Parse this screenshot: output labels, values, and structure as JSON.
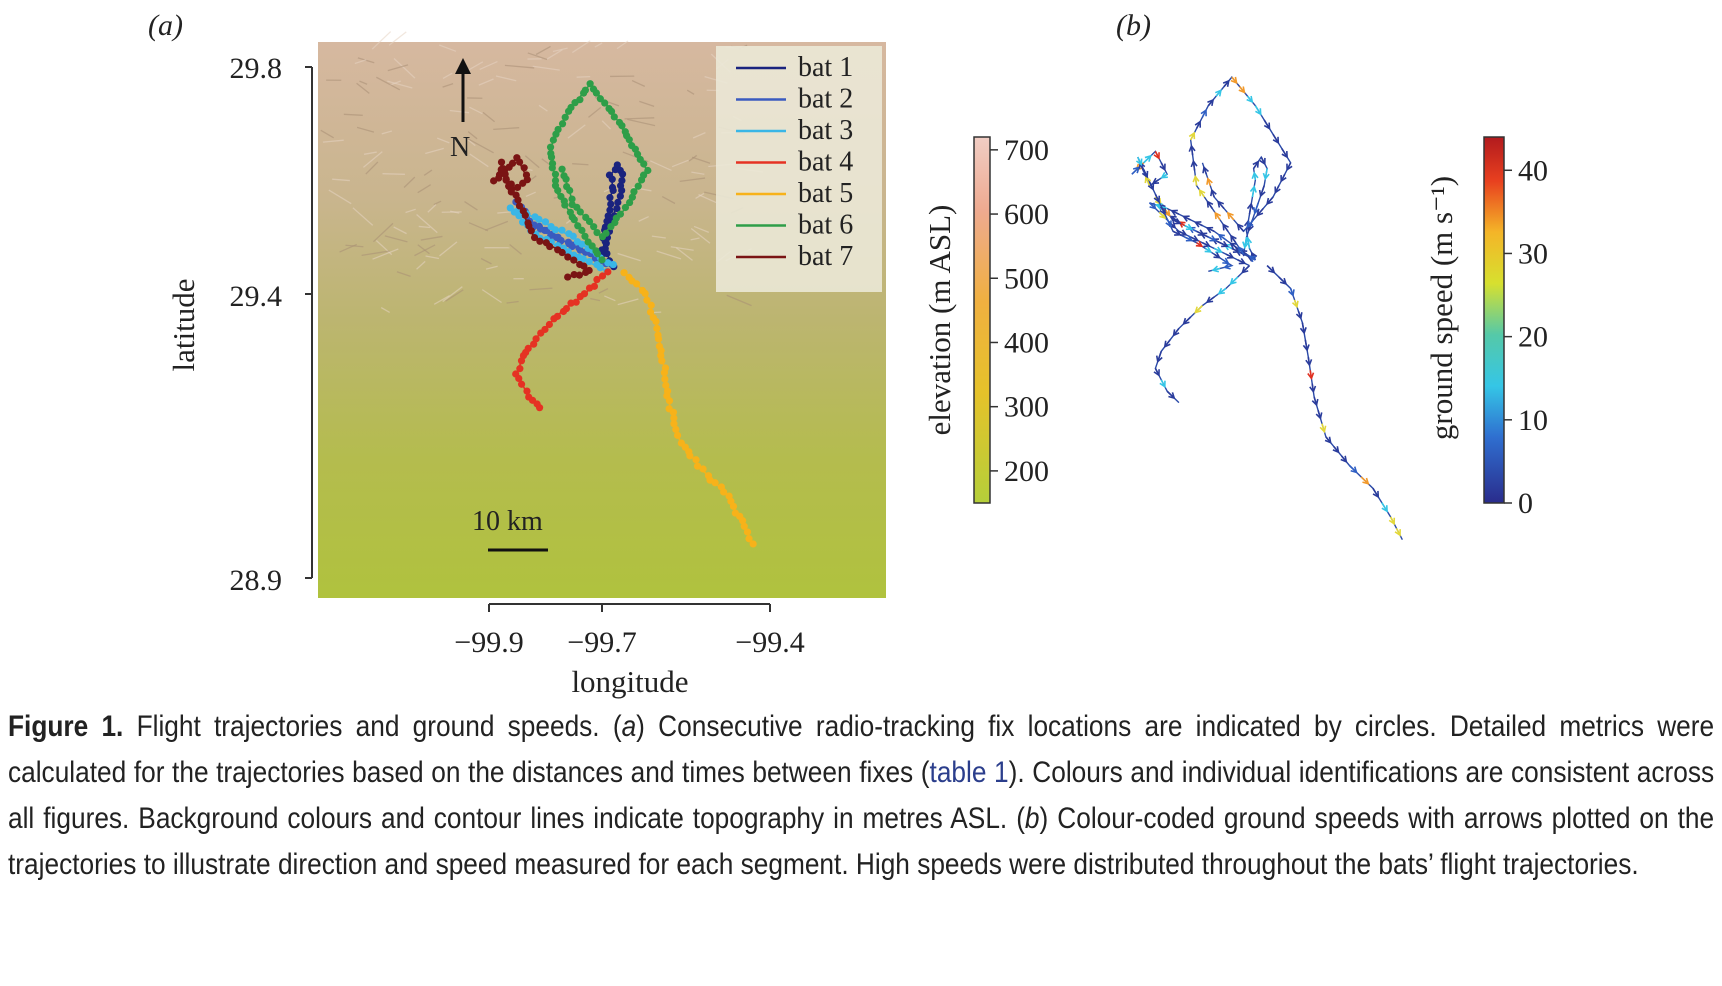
{
  "panel_a": {
    "label": "(a)",
    "xlabel": "longitude",
    "ylabel": "latitude",
    "x_ticks": [
      "−99.9",
      "−99.7",
      "−99.4"
    ],
    "y_ticks": [
      "29.8",
      "29.4",
      "28.9"
    ],
    "north_label": "N",
    "scale_label": "10 km"
  },
  "elevation_colorbar": {
    "label": "elevation (m ASL)",
    "ticks": [
      "700",
      "600",
      "500",
      "400",
      "300",
      "200"
    ]
  },
  "panel_b": {
    "label": "(b)"
  },
  "speed_colorbar": {
    "label": "ground speed (m s⁻¹)",
    "ticks": [
      "40",
      "30",
      "20",
      "10",
      "0"
    ]
  },
  "chart_data": [
    {
      "type": "scatter",
      "panel": "a",
      "xlabel": "longitude",
      "ylabel": "latitude",
      "xlim": [
        -100.2,
        -99.2
      ],
      "ylim": [
        28.9,
        29.84
      ],
      "x_ticks": [
        -99.9,
        -99.7,
        -99.4
      ],
      "y_ticks": [
        29.8,
        29.4,
        28.9
      ],
      "legend_position": "top-right",
      "series": [
        {
          "name": "bat 1",
          "color": "#1a237e",
          "points": [
            [
              -99.68,
              29.45
            ],
            [
              -99.69,
              29.47
            ],
            [
              -99.695,
              29.5
            ],
            [
              -99.69,
              29.53
            ],
            [
              -99.685,
              29.56
            ],
            [
              -99.68,
              29.59
            ],
            [
              -99.683,
              29.61
            ],
            [
              -99.67,
              29.63
            ],
            [
              -99.66,
              29.61
            ],
            [
              -99.665,
              29.58
            ],
            [
              -99.675,
              29.55
            ],
            [
              -99.685,
              29.52
            ],
            [
              -99.695,
              29.49
            ],
            [
              -99.7,
              29.46
            ]
          ]
        },
        {
          "name": "bat 2",
          "color": "#3a5bbf",
          "points": [
            [
              -99.68,
              29.45
            ],
            [
              -99.72,
              29.47
            ],
            [
              -99.76,
              29.49
            ],
            [
              -99.8,
              29.51
            ],
            [
              -99.83,
              29.53
            ],
            [
              -99.85,
              29.56
            ],
            [
              -99.82,
              29.52
            ],
            [
              -99.78,
              29.5
            ],
            [
              -99.74,
              29.48
            ],
            [
              -99.7,
              29.46
            ]
          ]
        },
        {
          "name": "bat 3",
          "color": "#3ab6e6",
          "points": [
            [
              -99.68,
              29.45
            ],
            [
              -99.71,
              29.47
            ],
            [
              -99.75,
              29.5
            ],
            [
              -99.79,
              29.52
            ],
            [
              -99.83,
              29.54
            ],
            [
              -99.86,
              29.55
            ],
            [
              -99.81,
              29.5
            ],
            [
              -99.77,
              29.48
            ],
            [
              -99.73,
              29.46
            ],
            [
              -99.69,
              29.44
            ]
          ]
        },
        {
          "name": "bat 4",
          "color": "#e53223",
          "points": [
            [
              -99.69,
              29.44
            ],
            [
              -99.73,
              29.4
            ],
            [
              -99.77,
              29.37
            ],
            [
              -99.81,
              29.33
            ],
            [
              -99.84,
              29.29
            ],
            [
              -99.85,
              29.26
            ],
            [
              -99.83,
              29.22
            ],
            [
              -99.81,
              29.2
            ]
          ]
        },
        {
          "name": "bat 5",
          "color": "#f7b21a",
          "points": [
            [
              -99.66,
              29.44
            ],
            [
              -99.62,
              29.4
            ],
            [
              -99.6,
              29.34
            ],
            [
              -99.59,
              29.28
            ],
            [
              -99.58,
              29.21
            ],
            [
              -99.56,
              29.14
            ],
            [
              -99.52,
              29.09
            ],
            [
              -99.48,
              29.05
            ],
            [
              -99.45,
              29.0
            ],
            [
              -99.43,
              28.96
            ]
          ]
        },
        {
          "name": "bat 6",
          "color": "#2e9e48",
          "points": [
            [
              -99.7,
              29.46
            ],
            [
              -99.74,
              29.52
            ],
            [
              -99.78,
              29.58
            ],
            [
              -99.79,
              29.66
            ],
            [
              -99.76,
              29.72
            ],
            [
              -99.72,
              29.77
            ],
            [
              -99.68,
              29.72
            ],
            [
              -99.65,
              29.67
            ],
            [
              -99.62,
              29.62
            ],
            [
              -99.65,
              29.56
            ],
            [
              -99.7,
              29.5
            ],
            [
              -99.75,
              29.56
            ],
            [
              -99.77,
              29.62
            ]
          ]
        },
        {
          "name": "bat 7",
          "color": "#7a1414",
          "points": [
            [
              -99.87,
              29.62
            ],
            [
              -99.89,
              29.6
            ],
            [
              -99.85,
              29.64
            ],
            [
              -99.83,
              29.6
            ],
            [
              -99.86,
              29.58
            ],
            [
              -99.88,
              29.63
            ],
            [
              -99.82,
              29.5
            ],
            [
              -99.78,
              29.48
            ],
            [
              -99.75,
              29.46
            ],
            [
              -99.72,
              29.44
            ],
            [
              -99.76,
              29.43
            ]
          ]
        }
      ]
    },
    {
      "type": "line",
      "panel": "b",
      "colorbar_label": "ground speed (m s⁻¹)",
      "colorbar_ticks": [
        0,
        10,
        20,
        30,
        40
      ],
      "colorbar_range": [
        0,
        44
      ]
    },
    {
      "type": "heatmap",
      "panel": "a-background",
      "colorbar_label": "elevation (m ASL)",
      "colorbar_ticks": [
        200,
        300,
        400,
        500,
        600,
        700
      ],
      "colorbar_range": [
        150,
        720
      ]
    }
  ],
  "caption": {
    "figure_label": "Figure 1.",
    "t1": " Flight trajectories and ground speeds. (",
    "a": "a",
    "t2": ") Consecutive radio-tracking fix locations are indicated by circles. Detailed metrics were calculated for the trajectories based on the distances and times between fixes (",
    "ref": "table 1",
    "t3": "). Colours and individual identifications are consistent across all figures. Background colours and contour lines indicate topography in metres ASL. (",
    "b": "b",
    "t4": ") Colour-coded ground speeds with arrows plotted on the trajectories to illustrate direction and speed measured for each segment. High speeds were distributed throughout the bats’ flight trajectories."
  }
}
